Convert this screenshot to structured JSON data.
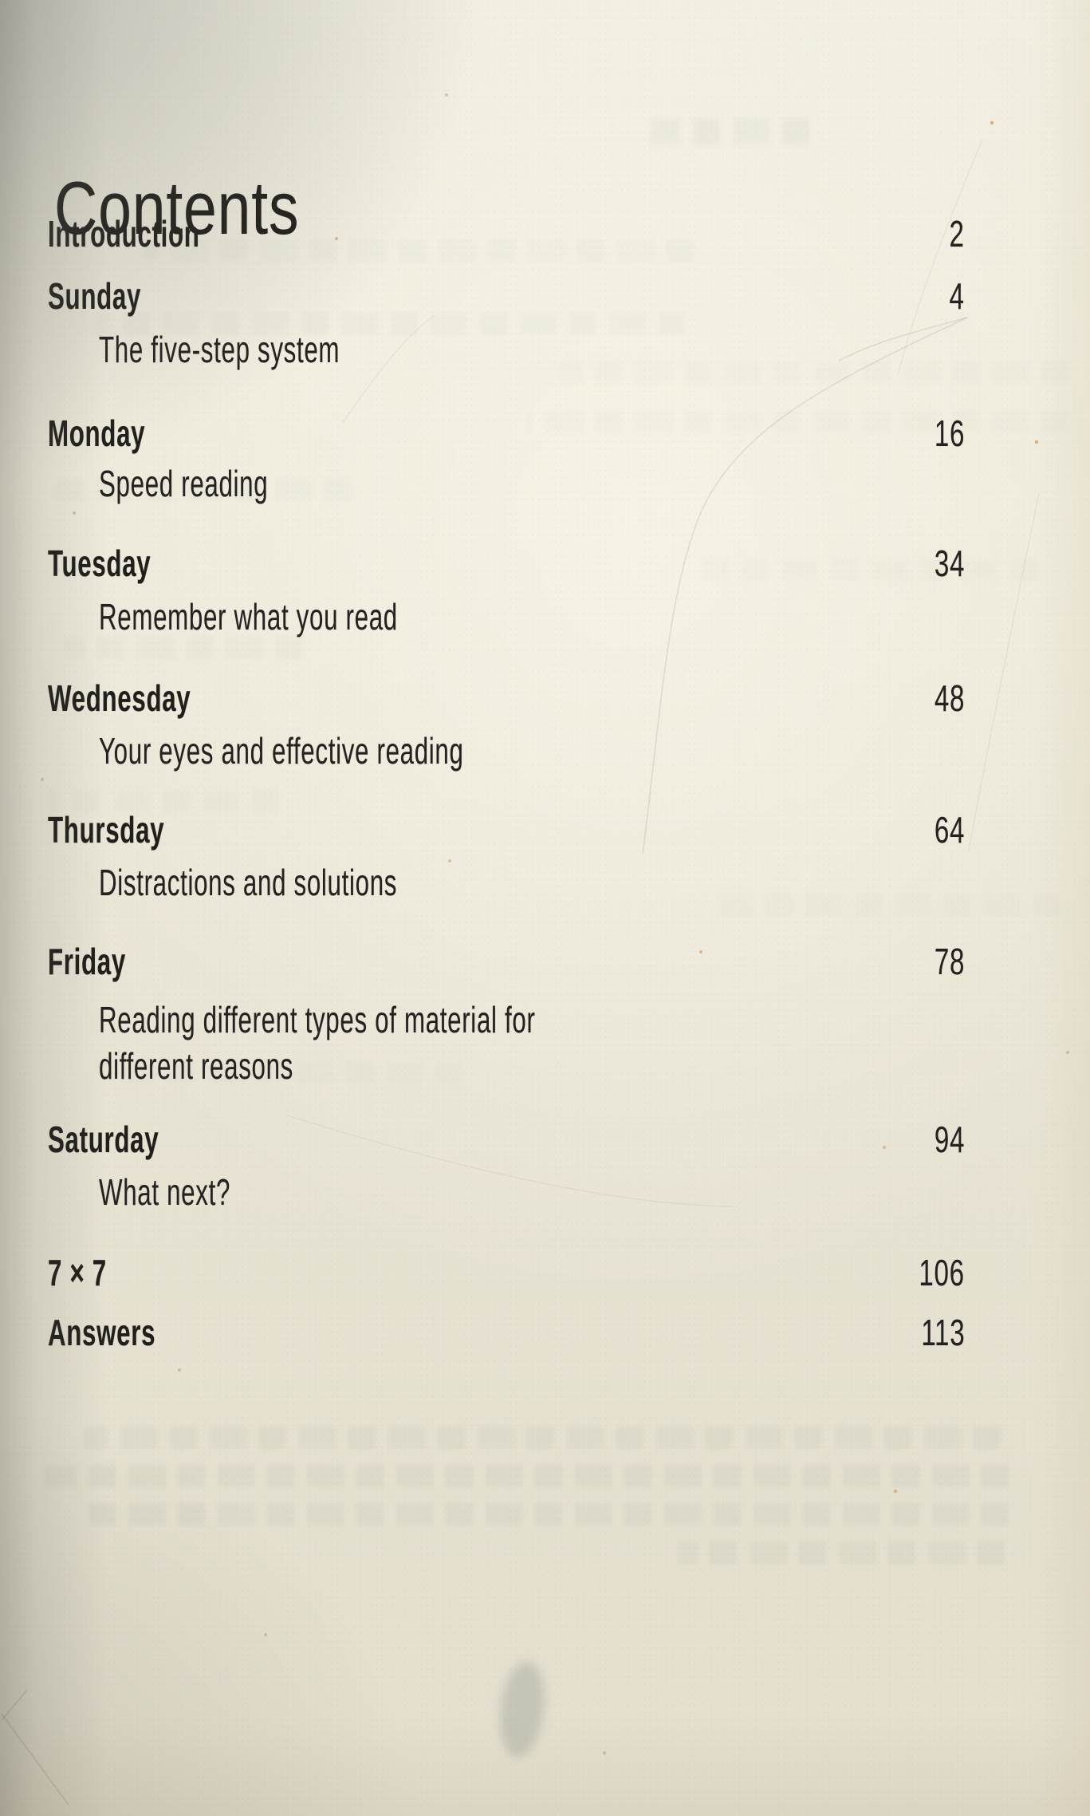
{
  "document": {
    "title": "Contents",
    "toc": {
      "entries": [
        {
          "label": "Introduction",
          "page": "2"
        },
        {
          "label": "Sunday",
          "page": "4",
          "subtitle": "The five-step system"
        },
        {
          "label": "Monday",
          "page": "16",
          "subtitle": "Speed reading"
        },
        {
          "label": "Tuesday",
          "page": "34",
          "subtitle": "Remember what you read"
        },
        {
          "label": "Wednesday",
          "page": "48",
          "subtitle": "Your eyes and effective reading"
        },
        {
          "label": "Thursday",
          "page": "64",
          "subtitle": "Distractions and solutions"
        },
        {
          "label": "Friday",
          "page": "78",
          "subtitle": "Reading different types of material for different reasons"
        },
        {
          "label": "Saturday",
          "page": "94",
          "subtitle": "What next?"
        },
        {
          "label": "7 × 7",
          "page": "106"
        },
        {
          "label": "Answers",
          "page": "113"
        }
      ]
    },
    "colors": {
      "paper": "#ece8d9",
      "ink": "#211f1c"
    }
  }
}
